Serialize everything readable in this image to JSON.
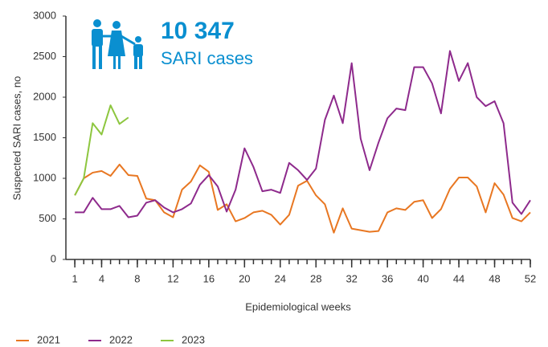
{
  "chart_data": {
    "type": "line",
    "annotations": [
      "10 347",
      "SARI cases"
    ],
    "x_label": "Epidemiological weeks",
    "y_label": "Suspected SARI cases, no",
    "x": [
      1,
      2,
      3,
      4,
      5,
      6,
      7,
      8,
      9,
      10,
      11,
      12,
      13,
      14,
      15,
      16,
      17,
      18,
      19,
      20,
      21,
      22,
      23,
      24,
      25,
      26,
      27,
      28,
      29,
      30,
      31,
      32,
      33,
      34,
      35,
      36,
      37,
      38,
      39,
      40,
      41,
      42,
      43,
      44,
      45,
      46,
      47,
      48,
      49,
      50,
      51,
      52
    ],
    "series": [
      {
        "name": "2021",
        "color": "#e87722",
        "values": [
          790,
          1000,
          1070,
          1090,
          1030,
          1170,
          1040,
          1030,
          750,
          730,
          580,
          520,
          860,
          960,
          1160,
          1080,
          610,
          680,
          470,
          510,
          580,
          600,
          550,
          430,
          550,
          910,
          970,
          790,
          680,
          330,
          630,
          380,
          360,
          340,
          350,
          580,
          630,
          610,
          710,
          730,
          510,
          620,
          870,
          1010,
          1010,
          900,
          580,
          940,
          800,
          510,
          470,
          580
        ]
      },
      {
        "name": "2022",
        "color": "#8e2a8c",
        "values": [
          580,
          580,
          760,
          620,
          620,
          660,
          520,
          540,
          700,
          730,
          640,
          580,
          620,
          690,
          920,
          1040,
          900,
          590,
          860,
          1370,
          1140,
          840,
          860,
          820,
          1190,
          1100,
          980,
          1120,
          1720,
          2020,
          1680,
          2420,
          1490,
          1100,
          1440,
          1740,
          1860,
          1840,
          2370,
          2370,
          2170,
          1800,
          2570,
          2200,
          2420,
          2000,
          1890,
          1950,
          1680,
          700,
          560,
          730
        ]
      },
      {
        "name": "2023",
        "color": "#8dc63f",
        "values": [
          790,
          1000,
          1680,
          1540,
          1900,
          1670,
          1750,
          null,
          null,
          null,
          null,
          null,
          null,
          null,
          null,
          null,
          null,
          null,
          null,
          null,
          null,
          null,
          null,
          null,
          null,
          null,
          null,
          null,
          null,
          null,
          null,
          null,
          null,
          null,
          null,
          null,
          null,
          null,
          null,
          null,
          null,
          null,
          null,
          null,
          null,
          null,
          null,
          null,
          null,
          null,
          null,
          null
        ]
      }
    ],
    "xlim": [
      0,
      52
    ],
    "xticks": [
      1,
      4,
      8,
      12,
      16,
      20,
      24,
      28,
      32,
      36,
      40,
      44,
      48,
      52
    ],
    "ylim": [
      0,
      3000
    ],
    "yticks": [
      0,
      500,
      1000,
      1500,
      2000,
      2500,
      3000
    ],
    "legend": "bottom-left"
  }
}
